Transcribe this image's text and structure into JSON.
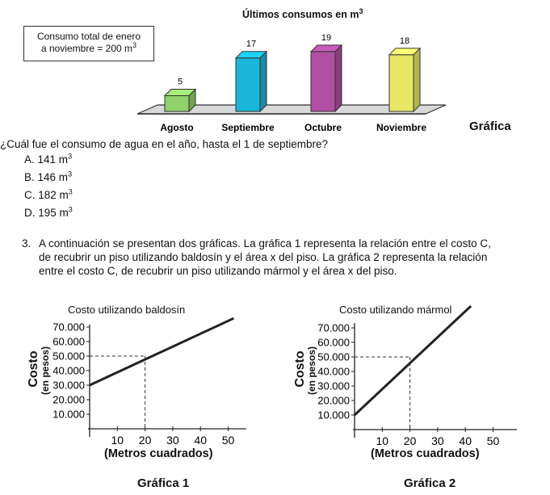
{
  "bar_chart": {
    "title": "Últimos consumos en m",
    "title_sup": "3",
    "box_line1": "Consumo total de enero",
    "box_line2": "a noviembre = 200 m",
    "box_sup": "3",
    "caption": "Gráfica"
  },
  "question": {
    "text": "¿Cuál fue el consumo de agua en el año, hasta el 1 de septiembre?",
    "options": [
      {
        "label": "A.",
        "value": "141 m",
        "sup": "3"
      },
      {
        "label": "B.",
        "value": "146 m",
        "sup": "3"
      },
      {
        "label": "C.",
        "value": "182 m",
        "sup": "3"
      },
      {
        "label": "D.",
        "value": "195 m",
        "sup": "3"
      }
    ]
  },
  "item3": {
    "number": "3.",
    "line1": "A continuación se presentan dos gráficas. La gráfica 1 representa la relación entre el costo C,",
    "line2": "de recubrir un piso utilizando baldosín y el área x del piso. La gráfica 2 representa la relación",
    "line3": "entre el costo C, de recubrir un piso utilizando mármol y el área x del piso."
  },
  "graph1": {
    "title": "Costo utilizando baldosín",
    "ylabel1": "Costo",
    "ylabel2": "(en pesos)",
    "xlabel": "(Metros cuadrados)",
    "caption": "Gráfica 1"
  },
  "graph2": {
    "title": "Costo utilizando mármol",
    "ylabel1": "Costo",
    "ylabel2": "(en pesos)",
    "xlabel": "(Metros cuadrados)",
    "caption": "Gráfica 2"
  },
  "chart_data": [
    {
      "type": "bar",
      "title": "Últimos consumos en m³",
      "categories": [
        "Agosto",
        "Septiembre",
        "Octubre",
        "Noviembre"
      ],
      "values": [
        5,
        17,
        19,
        18
      ],
      "colors": [
        "#8fd16a",
        "#19b6d9",
        "#b04fa3",
        "#e6e866"
      ],
      "ylim": [
        0,
        20
      ]
    },
    {
      "type": "line",
      "title": "Costo utilizando baldosín",
      "xlabel": "(Metros cuadrados)",
      "ylabel": "Costo (en pesos)",
      "x": [
        0,
        52
      ],
      "y": [
        30000,
        76000
      ],
      "xticks": [
        10,
        20,
        30,
        40,
        50
      ],
      "yticks": [
        10000,
        20000,
        30000,
        40000,
        50000,
        60000,
        70000
      ],
      "ytick_labels": [
        "10.000",
        "20.000",
        "30.000",
        "40.000",
        "50.000",
        "60.000",
        "70.000"
      ],
      "marker": {
        "x": 20,
        "y": 50000
      }
    },
    {
      "type": "line",
      "title": "Costo utilizando mármol",
      "xlabel": "(Metros cuadrados)",
      "ylabel": "Costo (en pesos)",
      "x": [
        0,
        42
      ],
      "y": [
        10000,
        85000
      ],
      "xticks": [
        10,
        20,
        30,
        40,
        50
      ],
      "yticks": [
        10000,
        20000,
        30000,
        40000,
        50000,
        60000,
        70000
      ],
      "ytick_labels": [
        "10.000",
        "20.000",
        "30.000",
        "40.000",
        "50.000",
        "60.000",
        "70.000"
      ],
      "marker": {
        "x": 20,
        "y": 50000
      }
    }
  ]
}
